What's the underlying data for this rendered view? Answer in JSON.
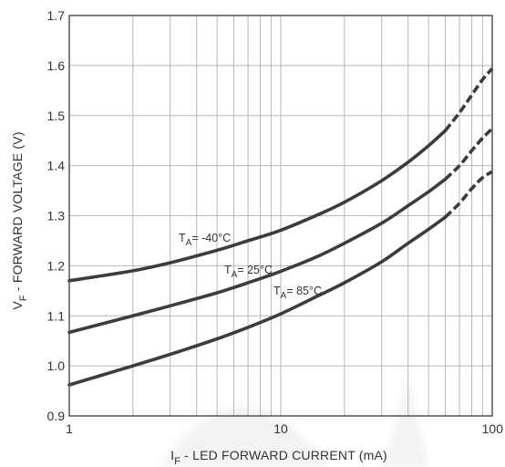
{
  "chart_data": {
    "type": "line",
    "x_scale": "log",
    "xlim": [
      1,
      100
    ],
    "ylim": [
      0.9,
      1.7
    ],
    "grid": true,
    "xlabel": {
      "sym": "I",
      "sub": "F",
      "rest": " - LED FORWARD CURRENT (mA)"
    },
    "ylabel": {
      "sym": "V",
      "sub": "F",
      "rest": " - FORWARD VOLTAGE (V)"
    },
    "x_ticks": [
      {
        "value": 1,
        "label": "1"
      },
      {
        "value": 10,
        "label": "10"
      },
      {
        "value": 100,
        "label": "100"
      }
    ],
    "y_ticks": [
      {
        "value": 0.9,
        "label": "0.9"
      },
      {
        "value": 1.0,
        "label": "1.0"
      },
      {
        "value": 1.1,
        "label": "1.1"
      },
      {
        "value": 1.2,
        "label": "1.2"
      },
      {
        "value": 1.3,
        "label": "1.3"
      },
      {
        "value": 1.4,
        "label": "1.4"
      },
      {
        "value": 1.5,
        "label": "1.5"
      },
      {
        "value": 1.6,
        "label": "1.6"
      },
      {
        "value": 1.7,
        "label": "1.7"
      }
    ],
    "dashed_from_x": 60,
    "series": [
      {
        "label": {
          "sym": "T",
          "sub": "A",
          "rest": "= -40°C"
        },
        "x": [
          1,
          2,
          3,
          5,
          7,
          10,
          15,
          20,
          30,
          40,
          50,
          60,
          70,
          80,
          90,
          100
        ],
        "y": [
          1.17,
          1.19,
          1.206,
          1.231,
          1.25,
          1.271,
          1.302,
          1.327,
          1.37,
          1.407,
          1.44,
          1.47,
          1.506,
          1.541,
          1.572,
          1.594
        ]
      },
      {
        "label": {
          "sym": "T",
          "sub": "A",
          "rest": "= 25°C"
        },
        "x": [
          1,
          2,
          3,
          5,
          7,
          10,
          15,
          20,
          30,
          40,
          50,
          60,
          70,
          80,
          90,
          100
        ],
        "y": [
          1.067,
          1.1,
          1.12,
          1.146,
          1.166,
          1.189,
          1.219,
          1.245,
          1.285,
          1.32,
          1.348,
          1.373,
          1.4,
          1.43,
          1.455,
          1.474
        ]
      },
      {
        "label": {
          "sym": "T",
          "sub": "A",
          "rest": "= 85°C"
        },
        "x": [
          1,
          2,
          3,
          5,
          7,
          10,
          15,
          20,
          30,
          40,
          50,
          60,
          70,
          80,
          90,
          100
        ],
        "y": [
          0.962,
          1.0,
          1.023,
          1.054,
          1.077,
          1.104,
          1.14,
          1.166,
          1.208,
          1.245,
          1.273,
          1.297,
          1.325,
          1.354,
          1.376,
          1.388
        ]
      }
    ]
  }
}
